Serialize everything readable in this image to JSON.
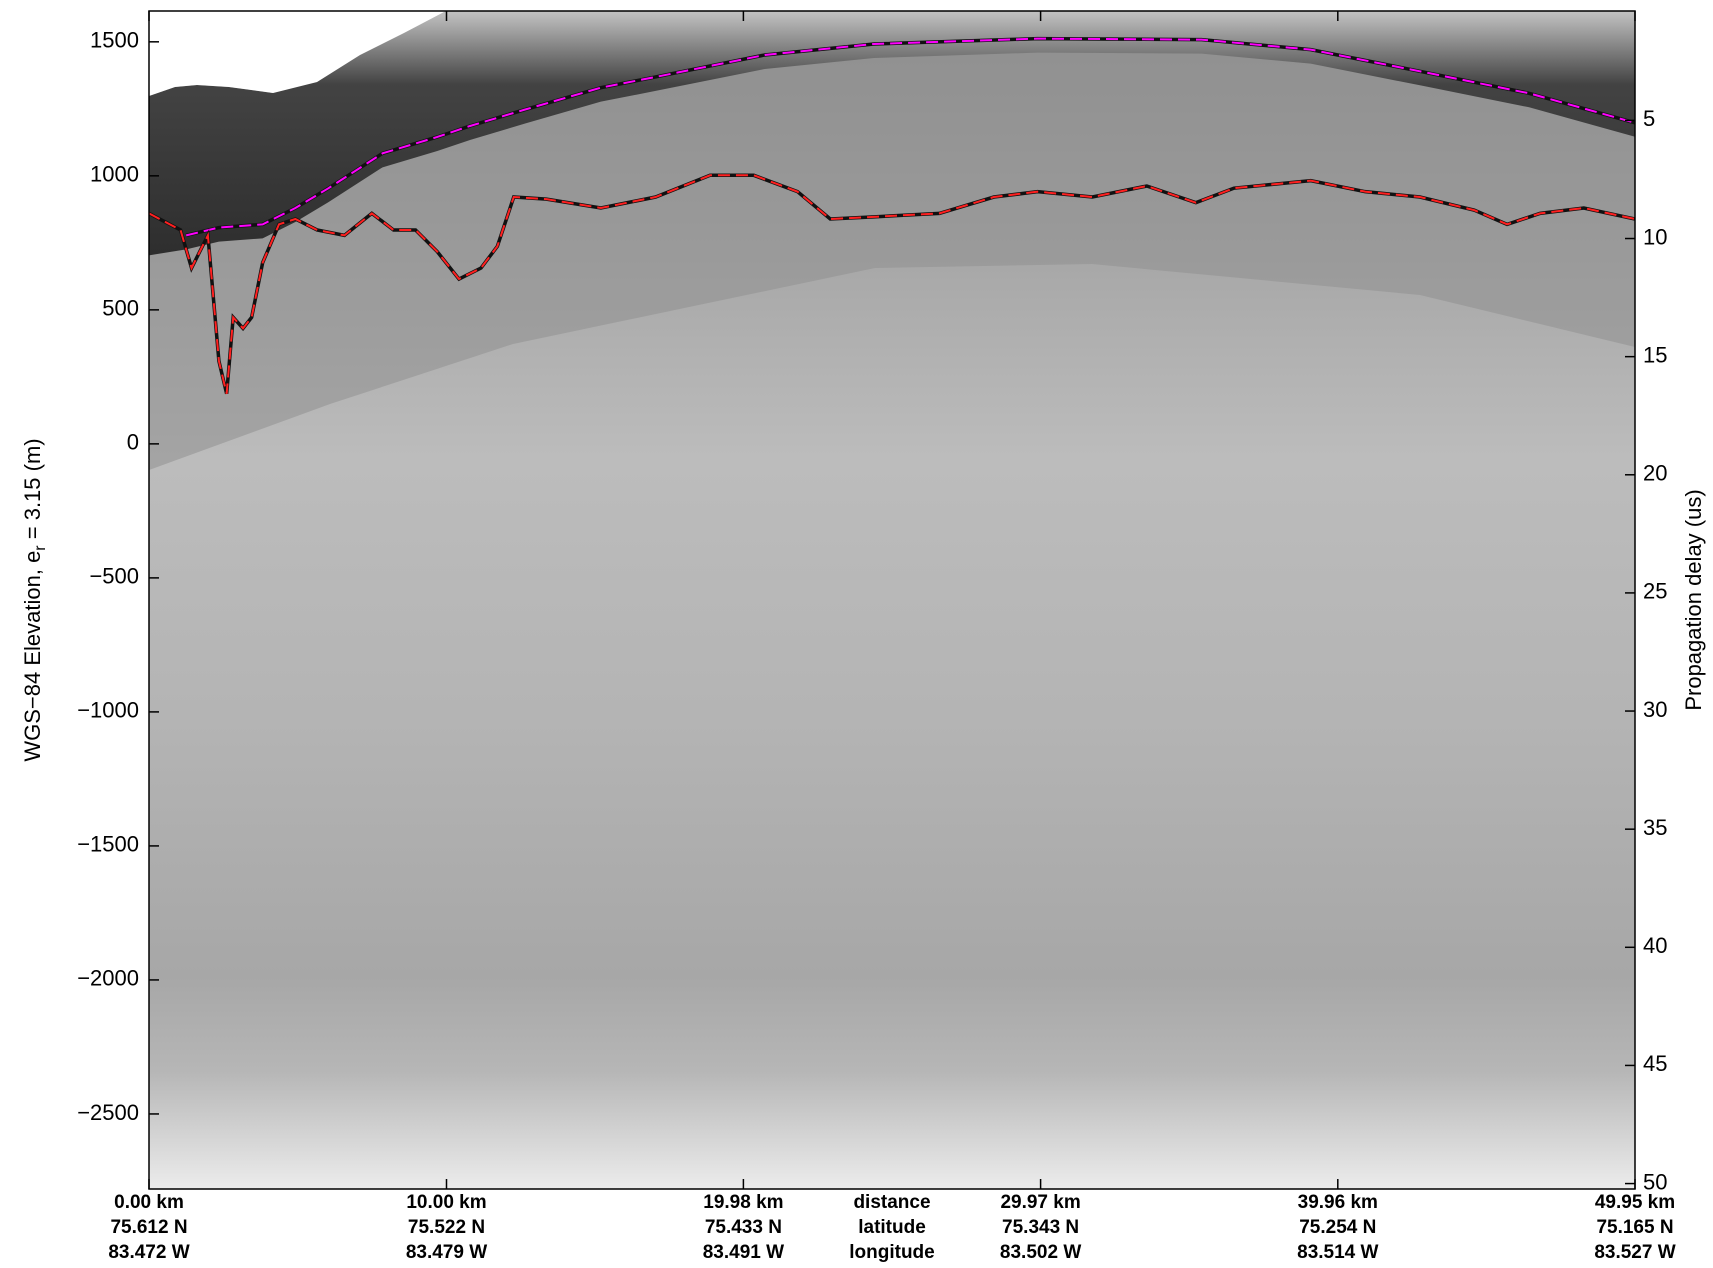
{
  "chart_data": {
    "type": "line",
    "ylabel": "WGS−84 Elevation, e",
    "ylabel_subscript": "r",
    "ylabel_suffix": " = 3.15 (m)",
    "y2label": "Propagation delay (us)",
    "xlim": [
      0,
      49.95
    ],
    "xticks": [
      {
        "value": 0,
        "label": "0.00 km"
      },
      {
        "value": 10.0,
        "label": "10.00 km"
      },
      {
        "value": 19.98,
        "label": "19.98 km"
      },
      {
        "value": 29.97,
        "label": "29.97 km"
      },
      {
        "value": 39.96,
        "label": "39.96 km"
      },
      {
        "value": 49.95,
        "label": "49.95 km"
      }
    ],
    "xtick_latitudes": [
      "75.612 N",
      "75.522 N",
      "75.433 N",
      "75.343 N",
      "75.254 N",
      "75.165 N"
    ],
    "xtick_longitudes": [
      "83.472 W",
      "83.479 W",
      "83.491 W",
      "83.502 W",
      "83.514 W",
      "83.527 W"
    ],
    "xtick_row_labels": [
      "distance",
      "latitude",
      "longitude"
    ],
    "ylim": [
      -2780,
      1615
    ],
    "yticks": [
      {
        "value": -2500,
        "label": "−2500"
      },
      {
        "value": -2000,
        "label": "−2000"
      },
      {
        "value": -1500,
        "label": "−1500"
      },
      {
        "value": -1000,
        "label": "−1000"
      },
      {
        "value": -500,
        "label": "−500"
      },
      0,
      500,
      1000,
      1500
    ],
    "y2lim": [
      50.23,
      0.37
    ],
    "y2ticks": [
      5,
      10,
      15,
      20,
      25,
      30,
      35,
      40,
      45,
      50
    ],
    "series": [
      {
        "color": "#ff00ff",
        "x": [
          1.25,
          2.35,
          3.82,
          4.92,
          6.02,
          7.85,
          9.69,
          10.79,
          12.63,
          15.19,
          17.03,
          20.7,
          24.37,
          29.87,
          35.38,
          39.05,
          42.72,
          46.39,
          49.95
        ],
        "values": [
          778,
          807,
          819,
          880,
          953,
          1084,
          1145,
          1186,
          1247,
          1329,
          1369,
          1451,
          1492,
          1512,
          1508,
          1471,
          1390,
          1308,
          1198
        ]
      },
      {
        "color": "#ff2020",
        "x": [
          0,
          1.06,
          1.43,
          1.98,
          2.35,
          2.61,
          2.83,
          3.16,
          3.45,
          3.82,
          4.37,
          4.92,
          5.65,
          6.57,
          7.49,
          8.22,
          8.96,
          9.69,
          10.42,
          11.16,
          11.71,
          12.26,
          13.36,
          15.19,
          17.03,
          18.86,
          20.33,
          21.8,
          22.9,
          24.37,
          26.57,
          28.4,
          29.87,
          31.71,
          33.54,
          35.19,
          36.47,
          39.05,
          40.88,
          42.72,
          44.55,
          45.65,
          46.76,
          48.23,
          49.95
        ],
        "values": [
          860,
          798,
          656,
          778,
          309,
          187,
          472,
          431,
          472,
          676,
          819,
          839,
          798,
          778,
          860,
          798,
          798,
          717,
          615,
          656,
          737,
          921,
          913,
          880,
          921,
          1002,
          1002,
          941,
          839,
          847,
          860,
          921,
          941,
          921,
          962,
          900,
          954,
          982,
          941,
          921,
          872,
          819,
          860,
          880,
          839
        ]
      }
    ]
  }
}
